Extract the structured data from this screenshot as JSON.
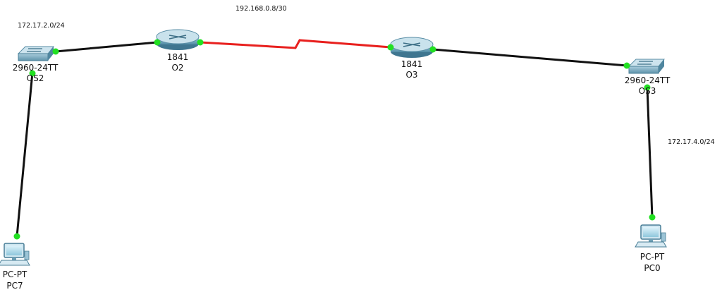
{
  "networks": {
    "wan": "192.168.0.8/30",
    "lan_left": "172.17.2.0/24",
    "lan_right": "172.17.4.0/24"
  },
  "devices": {
    "router_left": {
      "model": "1841",
      "name": "O2"
    },
    "router_right": {
      "model": "1841",
      "name": "O3"
    },
    "switch_left": {
      "model": "2960-24TT",
      "name": "OS2"
    },
    "switch_right": {
      "model": "2960-24TT",
      "name": "OS3"
    },
    "pc_left": {
      "model": "PC-PT",
      "name": "PC7"
    },
    "pc_right": {
      "model": "PC-PT",
      "name": "PC0"
    }
  },
  "colors": {
    "ethernet_link": "#111111",
    "serial_link": "#e8201e",
    "port_up": "#22e022",
    "device_body": "#6d9fb5"
  }
}
